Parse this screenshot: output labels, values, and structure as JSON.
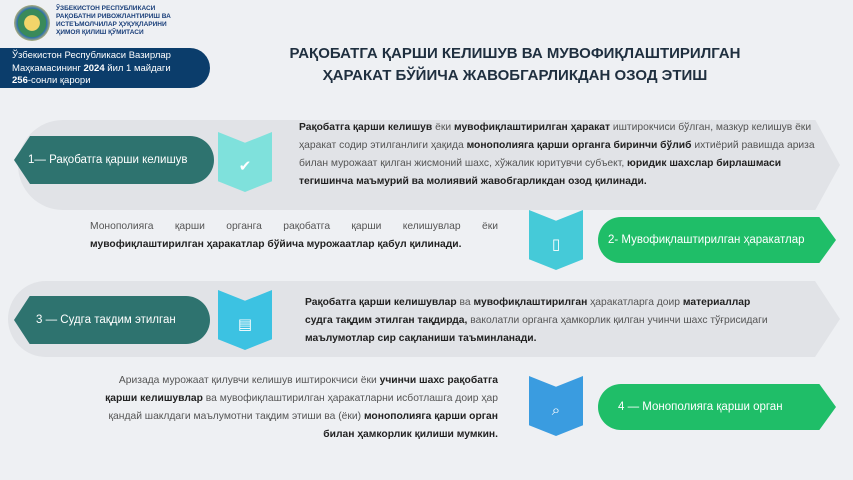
{
  "header": {
    "org_name": [
      "ЎЗБЕКИСТОН РЕСПУБЛИКАСИ",
      "РАҚОБАТНИ РИВОЖЛАНТИРИШ ВА",
      "ИСТЕЪМОЛЧИЛАР ҲУҚУҚЛАРИНИ",
      "ҲИМОЯ ҚИЛИШ ҚЎМИТАСИ"
    ],
    "decree": {
      "line1": "Ўзбекистон Республикаси Вазирлар",
      "line2_a": "Маҳкамасининг ",
      "line2_b": "2024",
      "line2_c": " йил 1 майдаги",
      "line3_a": "256",
      "line3_b": "-сонли қарори"
    },
    "title_line1": "РАҚОБАТГА ҚАРШИ КЕЛИШУВ ВА МУВОФИҚЛАШТИРИЛГАН",
    "title_line2": "ҲАРАКАТ БЎЙИЧА ЖАВОБГАРЛИКДАН ОЗОД ЭТИШ"
  },
  "steps": [
    {
      "label": "1— Рақобатга қарши келишув",
      "icon": "shield-check-icon",
      "color": "#2e736f"
    },
    {
      "label": "2- Мувофиқлаштирилган ҳаракатлар",
      "icon": "document-transfer-icon",
      "color": "#1fbe68"
    },
    {
      "label": "3 — Судга тақдим этилган",
      "icon": "document-icon",
      "color": "#2e736f"
    },
    {
      "label": "4 — Монополияга қарши орган",
      "icon": "search-document-icon",
      "color": "#1fbe68"
    }
  ],
  "texts": {
    "t1": [
      {
        "b": "Рақобатга қарши келишув"
      },
      {
        "n": " ёки "
      },
      {
        "b": "мувофиқлаштирилган ҳаракат"
      },
      {
        "n": " иштирокчиси бўлган, мазкур келишув ёки ҳаракат содир этилганлиги ҳақида "
      },
      {
        "b": "монополияга қарши органга биринчи бўлиб"
      },
      {
        "n": " ихтиёрий равишда ариза билан мурожаат қилган жисмоний шахс, хўжалик юритувчи субъект, "
      },
      {
        "b": "юридик шахслар бирлашмаси тегишинча маъмурий ва молиявий жавобгарликдан озод қилинади."
      }
    ],
    "t2": [
      {
        "n": "Монополияга қарши органга рақобатга қарши келишувлар ёки "
      },
      {
        "b": "мувофиқлаштирилган ҳаракатлар бўйича мурожаатлар қабул қилинади."
      }
    ],
    "t3": [
      {
        "b": "Рақобатга қарши келишувлар"
      },
      {
        "n": " ва "
      },
      {
        "b": "мувофиқлаштирилган"
      },
      {
        "n": " ҳаракатларга доир "
      },
      {
        "b": "материаллар судга тақдим этилган тақдирда,"
      },
      {
        "n": " ваколатли органга ҳамкорлик қилган учинчи шахс тўғрисидаги "
      },
      {
        "b": "маълумотлар сир сақланиши таъминланади."
      }
    ],
    "t4": [
      {
        "n": "Аризада мурожаат қилувчи келишув иштирокчиси ёки "
      },
      {
        "b": "учинчи шахс рақобатга қарши келишувлар"
      },
      {
        "n": " ва мувофиқлаштирилган ҳаракатларни исботлашга доир ҳар қандай шаклдаги маълумотни тақдим этиши ва (ёки) "
      },
      {
        "b": "монополияга қарши орган билан ҳамкорлик қилиши мумкин."
      }
    ]
  }
}
